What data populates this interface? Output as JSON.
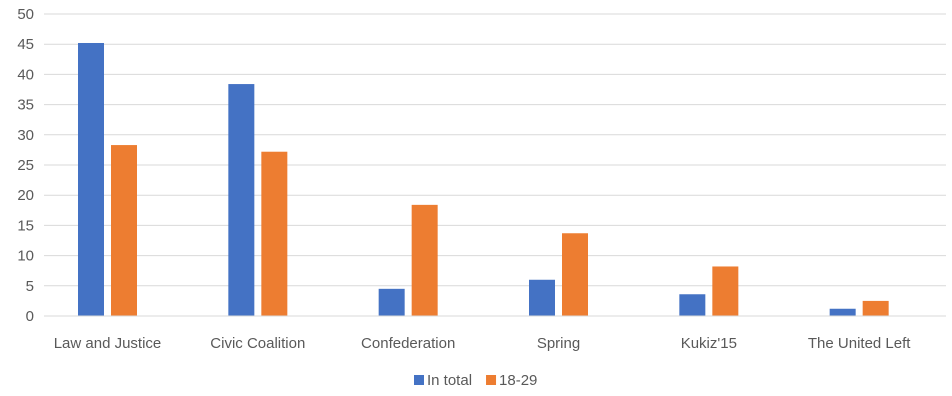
{
  "chart_data": {
    "type": "bar",
    "categories": [
      "Law and Justice",
      "Civic Coalition",
      "Confederation",
      "Spring",
      "Kukiz'15",
      "The United Left"
    ],
    "series": [
      {
        "name": "In total",
        "color": "#4472C4",
        "values": [
          45.2,
          38.4,
          4.5,
          6.0,
          3.6,
          1.2
        ]
      },
      {
        "name": "18-29",
        "color": "#ED7D31",
        "values": [
          28.3,
          27.2,
          18.4,
          13.7,
          8.2,
          2.5
        ]
      }
    ],
    "ylim": [
      0,
      50
    ],
    "yticks": [
      0,
      5,
      10,
      15,
      20,
      25,
      30,
      35,
      40,
      45,
      50
    ],
    "grid": true,
    "legend_position": "bottom",
    "title": "",
    "xlabel": "",
    "ylabel": ""
  }
}
